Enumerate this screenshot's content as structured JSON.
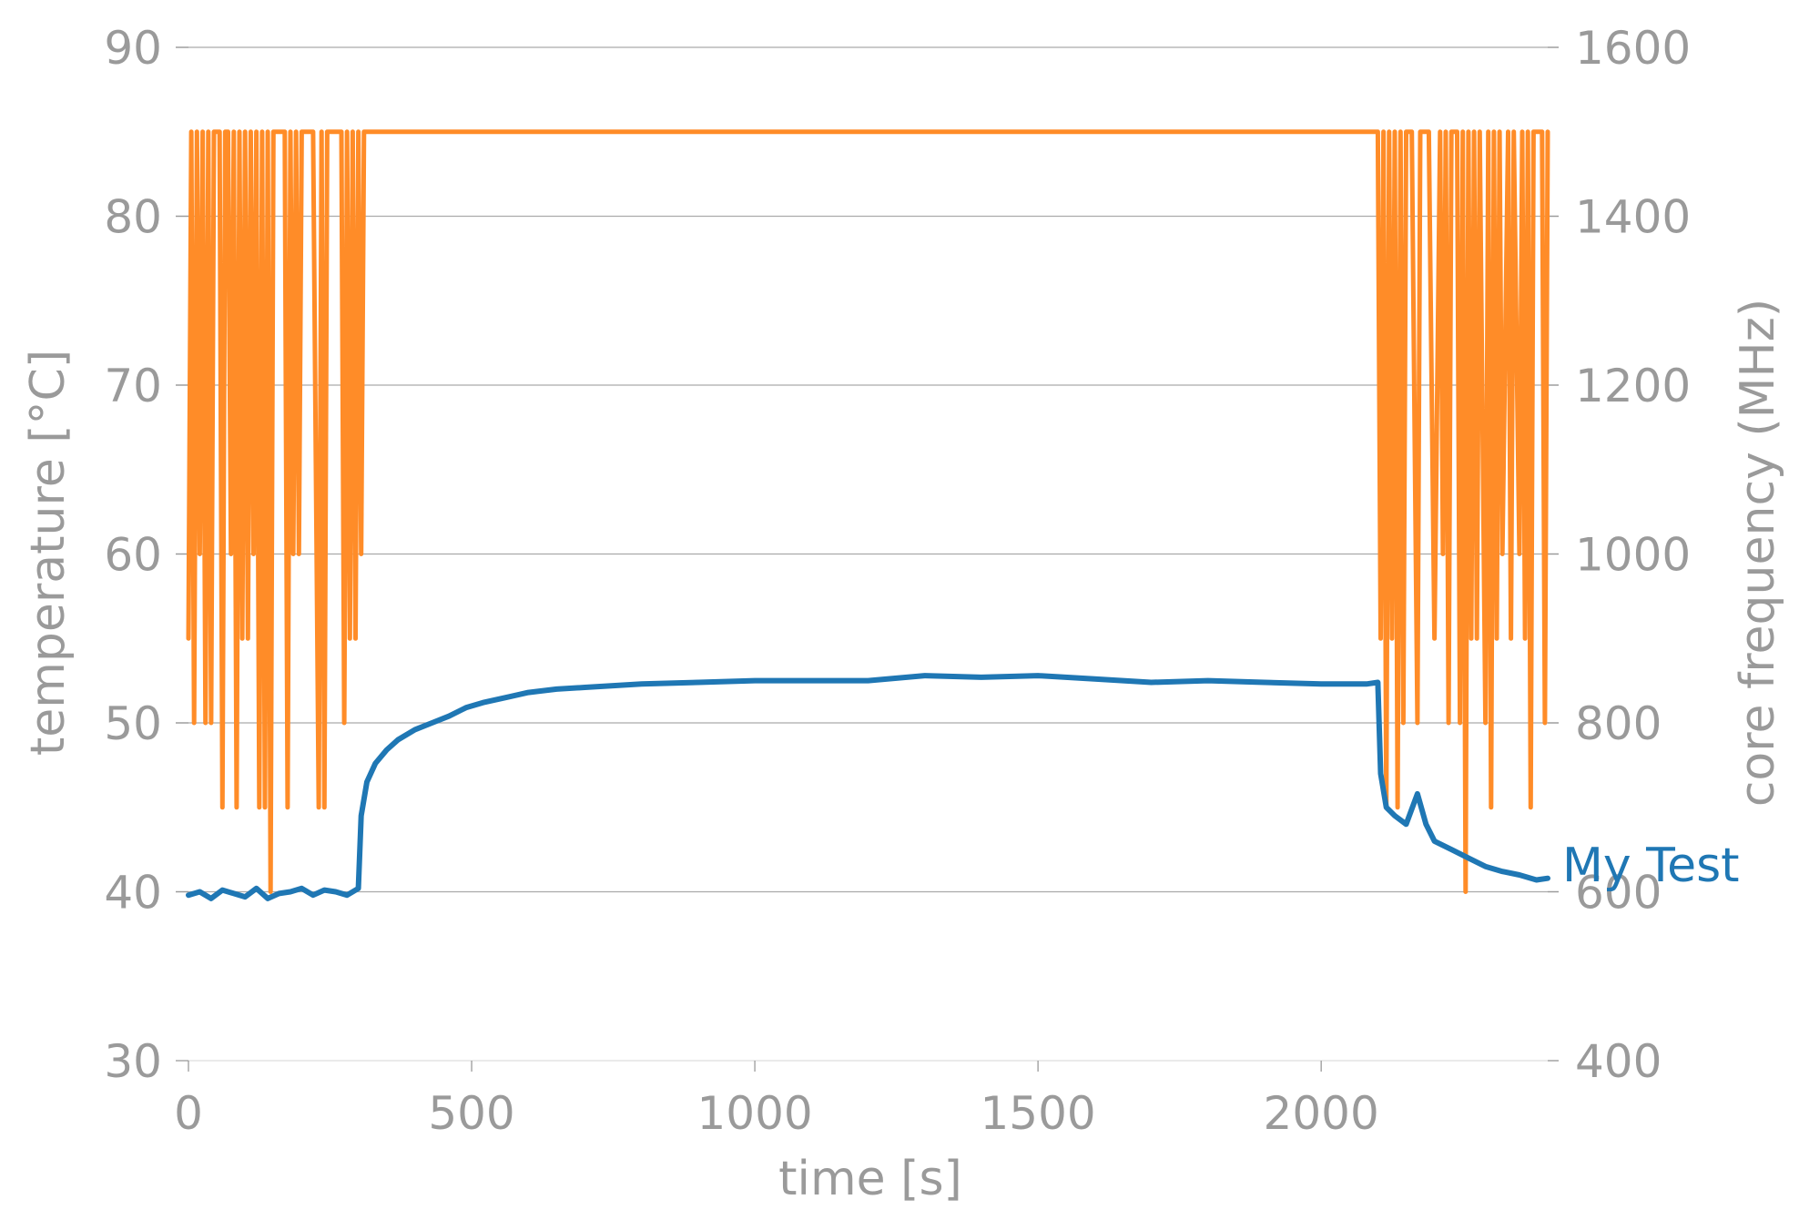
{
  "chart_data": {
    "type": "line",
    "xlabel": "time [s]",
    "ylabel_left": "temperature [°C]",
    "ylabel_right": "core frequency (MHz)",
    "xlim": [
      0,
      2400
    ],
    "ylim_left": [
      30,
      90
    ],
    "ylim_right": [
      400,
      1600
    ],
    "xticks": [
      0,
      500,
      1000,
      1500,
      2000
    ],
    "xtick_labels": [
      "0",
      "500",
      "1000",
      "1500",
      "2000"
    ],
    "yticks_left": [
      30,
      40,
      50,
      60,
      70,
      80,
      90
    ],
    "ytick_labels_left": [
      "30",
      "40",
      "50",
      "60",
      "70",
      "80",
      "90"
    ],
    "yticks_right": [
      400,
      600,
      800,
      1000,
      1200,
      1400,
      1600
    ],
    "ytick_labels_right": [
      "400",
      "600",
      "800",
      "1000",
      "1200",
      "1400",
      "1600"
    ],
    "grid": "horizontal",
    "colors": {
      "temperature": "#1f77b4",
      "frequency": "#ff8c28",
      "text": "#9a9a9a",
      "grid": "#aaaaaa"
    },
    "series_label": "My Test",
    "series": [
      {
        "name": "My Test",
        "axis": "left",
        "color": "#1f77b4",
        "x": [
          0,
          20,
          40,
          60,
          80,
          100,
          120,
          140,
          160,
          180,
          200,
          220,
          240,
          260,
          280,
          300,
          305,
          315,
          330,
          350,
          370,
          400,
          430,
          460,
          490,
          520,
          560,
          600,
          650,
          700,
          800,
          900,
          1000,
          1100,
          1200,
          1300,
          1400,
          1500,
          1600,
          1700,
          1800,
          1900,
          2000,
          2080,
          2100,
          2105,
          2115,
          2130,
          2150,
          2170,
          2185,
          2200,
          2230,
          2260,
          2290,
          2320,
          2350,
          2380,
          2400
        ],
        "y": [
          39.8,
          40.0,
          39.6,
          40.1,
          39.9,
          39.7,
          40.2,
          39.6,
          39.9,
          40.0,
          40.2,
          39.8,
          40.1,
          40.0,
          39.8,
          40.2,
          44.5,
          46.5,
          47.6,
          48.4,
          49.0,
          49.6,
          50.0,
          50.4,
          50.9,
          51.2,
          51.5,
          51.8,
          52.0,
          52.1,
          52.3,
          52.4,
          52.5,
          52.5,
          52.5,
          52.8,
          52.7,
          52.8,
          52.6,
          52.4,
          52.5,
          52.4,
          52.3,
          52.3,
          52.4,
          47.0,
          45.0,
          44.5,
          44.0,
          45.8,
          44.0,
          43.0,
          42.5,
          42.0,
          41.5,
          41.2,
          41.0,
          40.7,
          40.8
        ]
      },
      {
        "name": "",
        "axis": "right",
        "color": "#ff8c28",
        "x": [
          0,
          5,
          10,
          15,
          20,
          25,
          30,
          35,
          40,
          45,
          50,
          55,
          60,
          65,
          70,
          75,
          80,
          85,
          90,
          95,
          100,
          105,
          110,
          115,
          120,
          125,
          130,
          135,
          140,
          145,
          150,
          160,
          170,
          175,
          180,
          185,
          190,
          195,
          200,
          205,
          210,
          220,
          230,
          235,
          240,
          245,
          250,
          255,
          260,
          270,
          275,
          280,
          285,
          290,
          295,
          300,
          305,
          310,
          2100,
          2105,
          2110,
          2115,
          2120,
          2125,
          2130,
          2135,
          2140,
          2145,
          2150,
          2160,
          2170,
          2175,
          2180,
          2190,
          2200,
          2210,
          2215,
          2220,
          2225,
          2230,
          2240,
          2245,
          2250,
          2255,
          2260,
          2265,
          2270,
          2275,
          2280,
          2290,
          2295,
          2300,
          2305,
          2310,
          2315,
          2320,
          2330,
          2335,
          2340,
          2350,
          2355,
          2360,
          2365,
          2370,
          2375,
          2380,
          2390,
          2395,
          2400
        ],
        "y": [
          900,
          1500,
          800,
          1500,
          1000,
          1500,
          800,
          1500,
          800,
          1500,
          1500,
          1500,
          700,
          1500,
          1500,
          1000,
          1500,
          700,
          1500,
          900,
          1500,
          900,
          1500,
          1000,
          1500,
          700,
          1500,
          700,
          1500,
          600,
          1500,
          1500,
          1500,
          700,
          1500,
          1000,
          1500,
          1000,
          1500,
          1500,
          1500,
          1500,
          700,
          1500,
          700,
          1500,
          1500,
          1500,
          1500,
          1500,
          800,
          1500,
          900,
          1500,
          900,
          1500,
          1000,
          1500,
          1500,
          900,
          1500,
          700,
          1500,
          900,
          1500,
          700,
          1500,
          800,
          1500,
          1500,
          800,
          1500,
          1500,
          1500,
          900,
          1500,
          1000,
          1500,
          800,
          1500,
          1500,
          800,
          1500,
          600,
          1500,
          900,
          1500,
          900,
          1500,
          800,
          1500,
          700,
          1500,
          900,
          1500,
          1000,
          1500,
          900,
          1500,
          1000,
          1500,
          900,
          1500,
          700,
          1500,
          1500,
          1500,
          800,
          1500
        ]
      }
    ]
  }
}
